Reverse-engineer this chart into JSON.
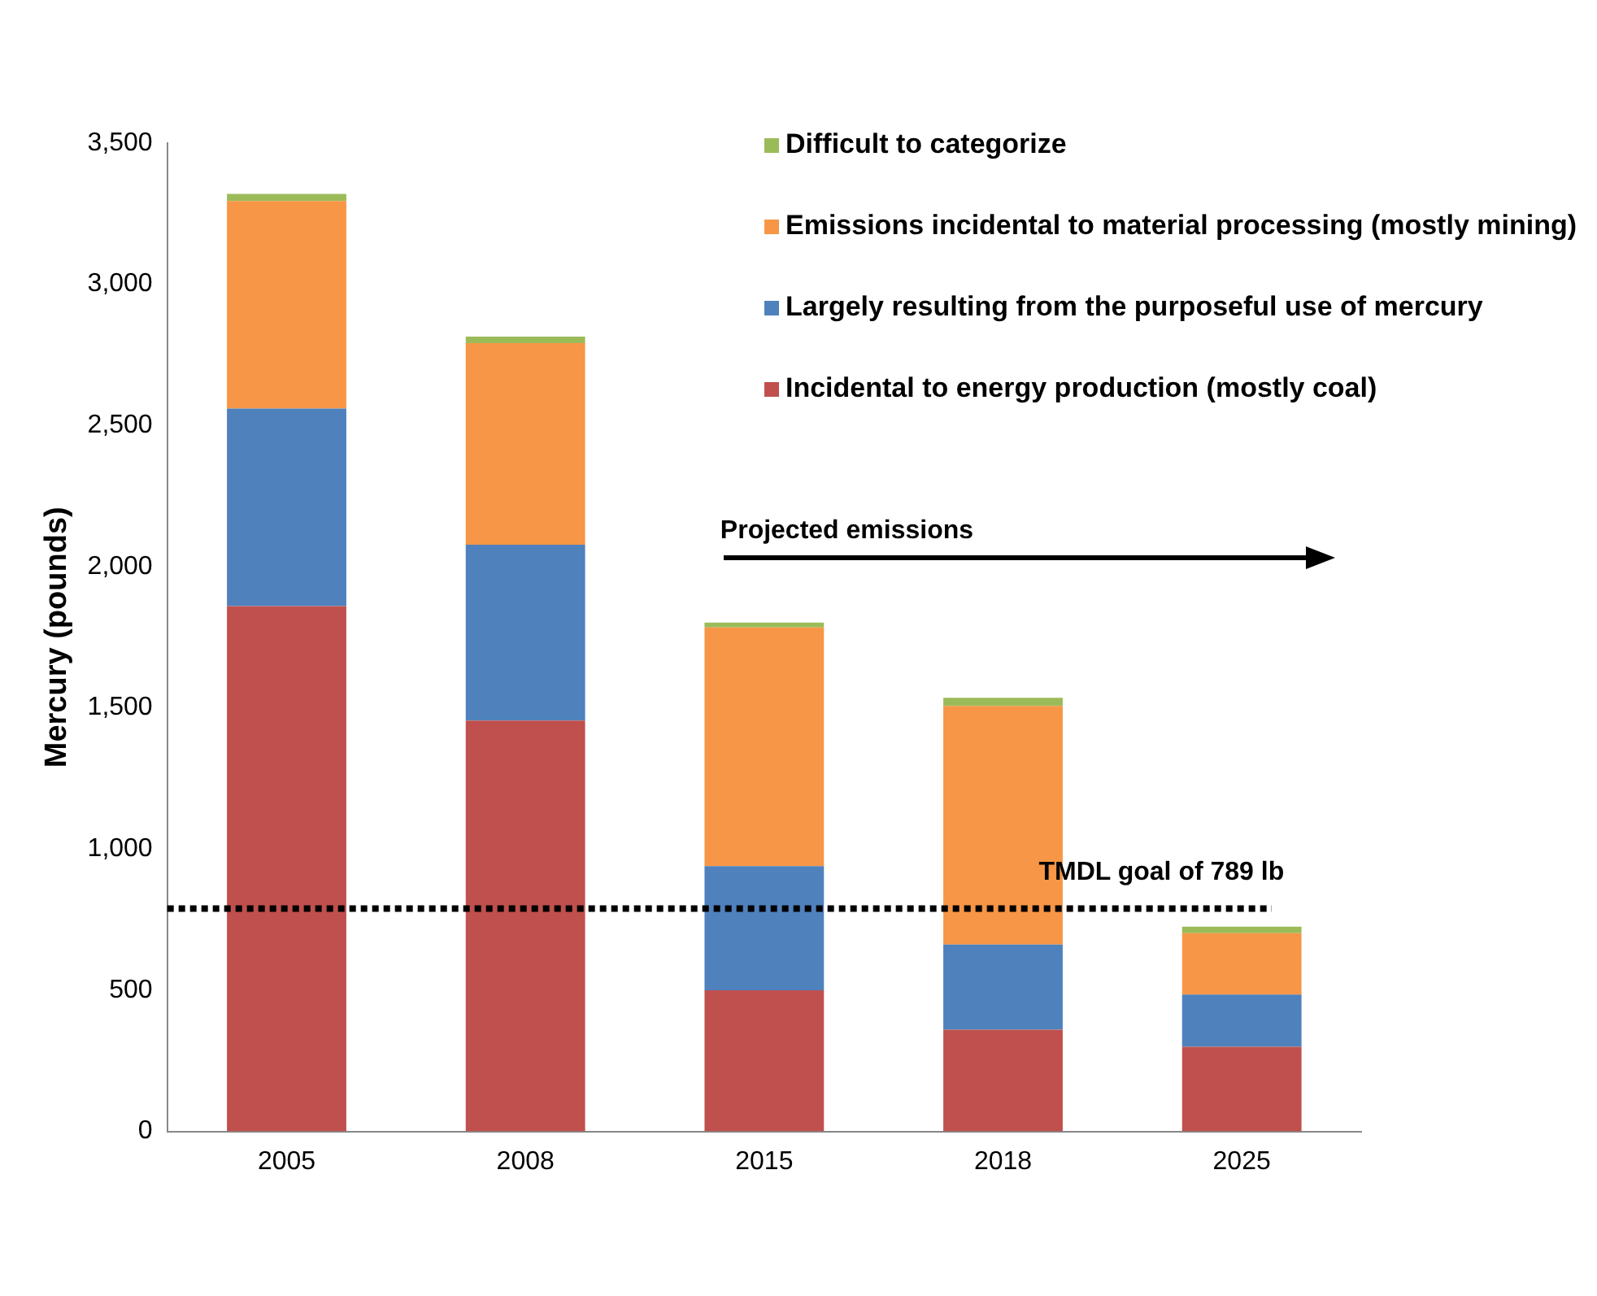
{
  "chart_data": {
    "type": "bar",
    "stacked": true,
    "ylabel": "Mercury (pounds)",
    "categories": [
      "2005",
      "2008",
      "2015",
      "2018",
      "2025"
    ],
    "series": [
      {
        "name": "Incidental to energy production (mostly coal)",
        "color": "#c0504d",
        "values": [
          1860,
          1455,
          500,
          360,
          300
        ]
      },
      {
        "name": "Largely resulting from the purposeful use of mercury",
        "color": "#4f81bd",
        "values": [
          700,
          623,
          440,
          302,
          185
        ]
      },
      {
        "name": "Emissions incidental to material processing (mostly mining)",
        "color": "#f79646",
        "values": [
          735,
          714,
          845,
          845,
          217
        ]
      },
      {
        "name": "Difficult to categorize",
        "color": "#9bbb59",
        "values": [
          25,
          23,
          17,
          29,
          23
        ]
      }
    ],
    "ylim": [
      0,
      3500
    ],
    "yticks": [
      {
        "value": 0,
        "label": "0"
      },
      {
        "value": 500,
        "label": "500"
      },
      {
        "value": 1000,
        "label": "1,000"
      },
      {
        "value": 1500,
        "label": "1,500"
      },
      {
        "value": 2000,
        "label": "2,000"
      },
      {
        "value": 2500,
        "label": "2,500"
      },
      {
        "value": 3000,
        "label": "3,000"
      },
      {
        "value": 3500,
        "label": "3,500"
      }
    ],
    "grid": false,
    "legend": "top right",
    "ref_lines": [
      {
        "axis": "y",
        "value": 789,
        "label": "TMDL goal of 789 lb",
        "color": "#000000",
        "line_style": "dotted"
      }
    ],
    "annotations": [
      "Projected emissions"
    ]
  }
}
